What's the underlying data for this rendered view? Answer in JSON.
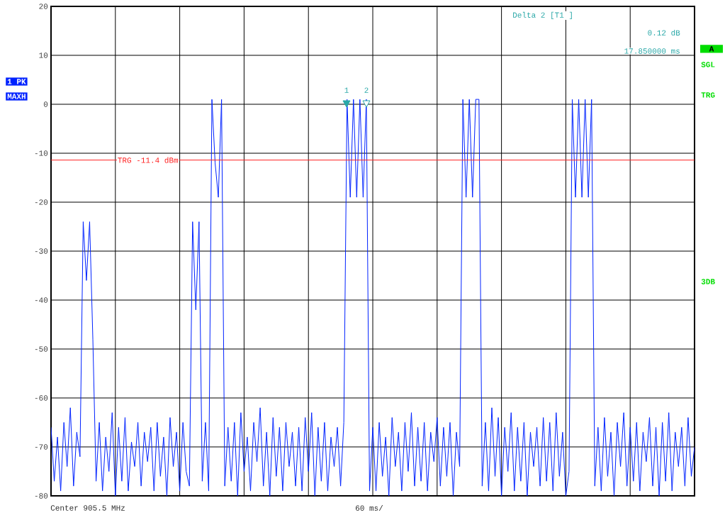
{
  "chart_data": {
    "type": "line",
    "categories": [
      null,
      null,
      null,
      null,
      null,
      null,
      null,
      null,
      null,
      null,
      null,
      null,
      null,
      null,
      null,
      null,
      null,
      null,
      null,
      null,
      null,
      null,
      null,
      null,
      null,
      null,
      null,
      null,
      null,
      null,
      null,
      null,
      null,
      null,
      null,
      null,
      null,
      null,
      null,
      null,
      null,
      null,
      null,
      null,
      null,
      null,
      null,
      null,
      null,
      null,
      null,
      null,
      null,
      null,
      null,
      null,
      null,
      null,
      null,
      null,
      null,
      null,
      null,
      null,
      null,
      null,
      null,
      null,
      null,
      null,
      null,
      null,
      null,
      null,
      null,
      null,
      null,
      null,
      null,
      null,
      null,
      null,
      null,
      null,
      null,
      null,
      null,
      null,
      null,
      null,
      null,
      null,
      null,
      null,
      null,
      null,
      null,
      null,
      null,
      null,
      null,
      null,
      null,
      null,
      null,
      null,
      null,
      null,
      null,
      null,
      null,
      null,
      null,
      null,
      null,
      null,
      null,
      null,
      null,
      null,
      null,
      null,
      null,
      null,
      null,
      null,
      null,
      null,
      null,
      null,
      null,
      null,
      null,
      null,
      null,
      null,
      null,
      null,
      null,
      null,
      null,
      null,
      null,
      null,
      null,
      null,
      null,
      null,
      null,
      null,
      null,
      null,
      null,
      null,
      null,
      null,
      null,
      null,
      null,
      null,
      null,
      null,
      null,
      null,
      null,
      null,
      null,
      null,
      null,
      null,
      null,
      null,
      null,
      null,
      null,
      null,
      null,
      null,
      null,
      null,
      null,
      null,
      null,
      null,
      null,
      null,
      null,
      null,
      null,
      null,
      null,
      null,
      null,
      null,
      null,
      null,
      null,
      null,
      null,
      null,
      null
    ],
    "series": [
      {
        "color": "#0022ff",
        "values": [
          -66,
          -77,
          -68,
          -79,
          -65,
          -74,
          -62,
          -78,
          -67,
          -72,
          -24,
          -36,
          -24,
          -48,
          -77,
          -65,
          -79,
          -68,
          -75,
          -63,
          -80,
          -66,
          -77,
          -64,
          -79,
          -69,
          -74,
          -65,
          -78,
          -67,
          -73,
          -66,
          -79,
          -65,
          -76,
          -68,
          -80,
          -64,
          -74,
          -67,
          -79,
          -65,
          -75,
          -78,
          -24,
          -42,
          -24,
          -77,
          -65,
          -79,
          1,
          -12,
          -19,
          1,
          -78,
          -66,
          -77,
          -65,
          -80,
          -63,
          -75,
          -68,
          -79,
          -65,
          -73,
          -62,
          -78,
          -67,
          -80,
          -64,
          -76,
          -66,
          -79,
          -65,
          -74,
          -67,
          -78,
          -66,
          -79,
          -64,
          -75,
          -63,
          -80,
          -66,
          -77,
          -65,
          -79,
          -68,
          -74,
          -66,
          -78,
          -65,
          1,
          -19,
          1,
          -19,
          1,
          -19,
          1,
          -79,
          -66,
          -79,
          -65,
          -76,
          -68,
          -80,
          -64,
          -74,
          -67,
          -79,
          -65,
          -75,
          -63,
          -78,
          -66,
          -77,
          -65,
          -79,
          -67,
          -73,
          -64,
          -78,
          -66,
          -76,
          -65,
          -80,
          -67,
          -74,
          1,
          -19,
          1,
          -19,
          1,
          1,
          -78,
          -65,
          -79,
          -62,
          -76,
          -64,
          -80,
          -66,
          -75,
          -63,
          -79,
          -66,
          -77,
          -65,
          -80,
          -67,
          -74,
          -66,
          -78,
          -64,
          -77,
          -65,
          -79,
          -63,
          -76,
          -67,
          -80,
          -75,
          1,
          -19,
          1,
          -19,
          1,
          -19,
          1,
          -78,
          -66,
          -79,
          -64,
          -76,
          -67,
          -80,
          -65,
          -74,
          -63,
          -78,
          -66,
          -77,
          -65,
          -79,
          -67,
          -73,
          -64,
          -78,
          -66,
          -80,
          -65,
          -77,
          -63,
          -79,
          -67,
          -74,
          -66,
          -78,
          -64,
          -76,
          -70
        ]
      }
    ],
    "ylim": [
      -80,
      20
    ],
    "yticks": [
      -80,
      -70,
      -60,
      -50,
      -40,
      -30,
      -20,
      -10,
      0,
      10,
      20
    ],
    "grid": true,
    "ref_lines": [
      {
        "axis": "y",
        "value": -11.4,
        "label": "TRG -11.4 dBm",
        "color": "#ff2020"
      }
    ],
    "annotations": [
      "1",
      "2",
      "Delta 2 [T1 ]",
      "0.12 dB",
      "17.850000 ms",
      "Center 905.5 MHz",
      "60 ms/",
      "1 PK",
      "MAXH",
      "A",
      "SGL",
      "TRG",
      "3DB"
    ]
  }
}
